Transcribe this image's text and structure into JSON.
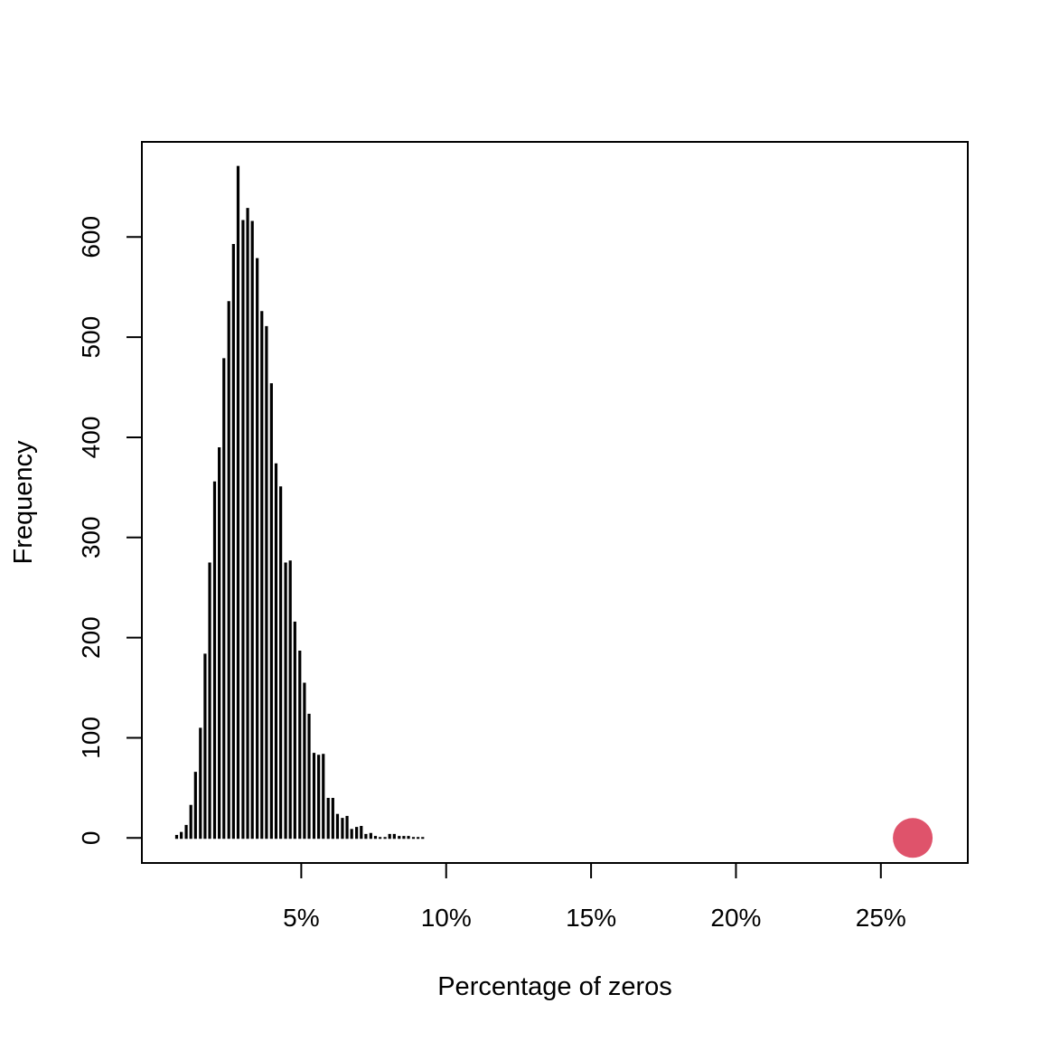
{
  "chart_data": {
    "type": "bar",
    "title": "",
    "xlabel": "Percentage of zeros",
    "ylabel": "Frequency",
    "xlim": [
      -0.5,
      28.0
    ],
    "ylim": [
      -25,
      695
    ],
    "grid": false,
    "x_ticks": [
      {
        "value": 5,
        "label": "5%"
      },
      {
        "value": 10,
        "label": "10%"
      },
      {
        "value": 15,
        "label": "15%"
      },
      {
        "value": 20,
        "label": "20%"
      },
      {
        "value": 25,
        "label": "25%"
      }
    ],
    "y_ticks": [
      {
        "value": 0,
        "label": "0"
      },
      {
        "value": 100,
        "label": "100"
      },
      {
        "value": 200,
        "label": "200"
      },
      {
        "value": 300,
        "label": "300"
      },
      {
        "value": 400,
        "label": "400"
      },
      {
        "value": 500,
        "label": "500"
      },
      {
        "value": 600,
        "label": "600"
      }
    ],
    "series": [
      {
        "color": "#000000",
        "x": [
          0.7,
          0.86,
          1.03,
          1.19,
          1.35,
          1.52,
          1.68,
          1.84,
          2.01,
          2.17,
          2.33,
          2.5,
          2.66,
          2.82,
          2.99,
          3.15,
          3.31,
          3.48,
          3.64,
          3.8,
          3.97,
          4.13,
          4.29,
          4.46,
          4.62,
          4.78,
          4.95,
          5.11,
          5.27,
          5.44,
          5.6,
          5.76,
          5.93,
          6.09,
          6.25,
          6.42,
          6.58,
          6.74,
          6.91,
          7.07,
          7.23,
          7.4,
          7.56,
          7.72,
          7.89,
          8.05,
          8.21,
          8.38,
          8.54,
          8.7,
          8.87,
          9.03,
          9.19
        ],
        "values": [
          3,
          6,
          13,
          33,
          66,
          110,
          184,
          275,
          356,
          390,
          479,
          536,
          593,
          671,
          617,
          629,
          616,
          579,
          526,
          511,
          454,
          374,
          351,
          275,
          277,
          216,
          187,
          155,
          124,
          85,
          83,
          84,
          40,
          40,
          24,
          20,
          22,
          9,
          11,
          12,
          4,
          5,
          2,
          0,
          0,
          4,
          4,
          2,
          2,
          2,
          0,
          0,
          0
        ]
      }
    ],
    "highlight_point": {
      "x": 26.1,
      "y": 0,
      "color": "#DF536B"
    }
  }
}
